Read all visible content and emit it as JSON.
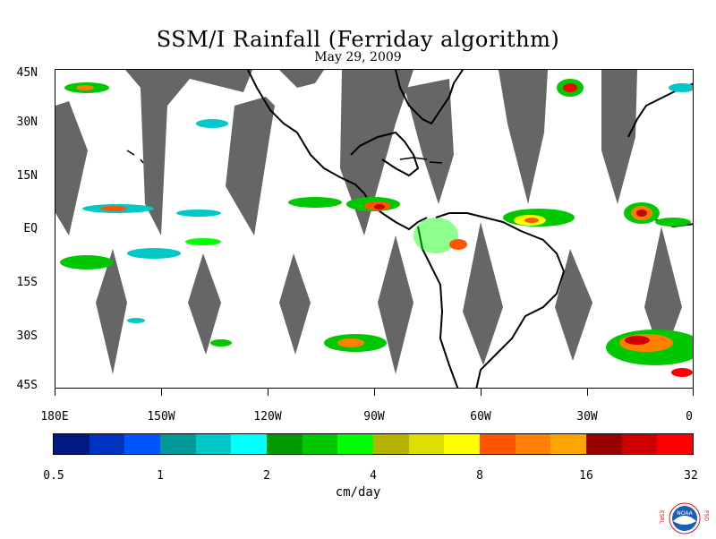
{
  "title": "SSM/I Rainfall (Ferriday algorithm)",
  "subtitle": "May 29, 2009",
  "lat_labels": [
    "45N",
    "30N",
    "15N",
    "EQ",
    "15S",
    "30S",
    "45S"
  ],
  "lon_labels": [
    "180E",
    "150W",
    "120W",
    "90W",
    "60W",
    "30W",
    "0"
  ],
  "colorbar": {
    "colors": [
      "#001a7f",
      "#0033bf",
      "#0055ff",
      "#009999",
      "#00c8c8",
      "#00ffff",
      "#009900",
      "#00c800",
      "#00ff00",
      "#b3b300",
      "#dddd00",
      "#ffff00",
      "#ff5500",
      "#ff8000",
      "#ffa500",
      "#990000",
      "#cc0000",
      "#ff0000"
    ],
    "ticks": [
      "0.5",
      "1",
      "2",
      "4",
      "8",
      "16",
      "32"
    ],
    "units": "cm/day"
  },
  "logo": {
    "left_letters": "ESRL",
    "right_letters": "PSD",
    "emblem": "NOAA"
  },
  "colors": {
    "swath_gap": "#666666",
    "coastline": "#000000"
  }
}
